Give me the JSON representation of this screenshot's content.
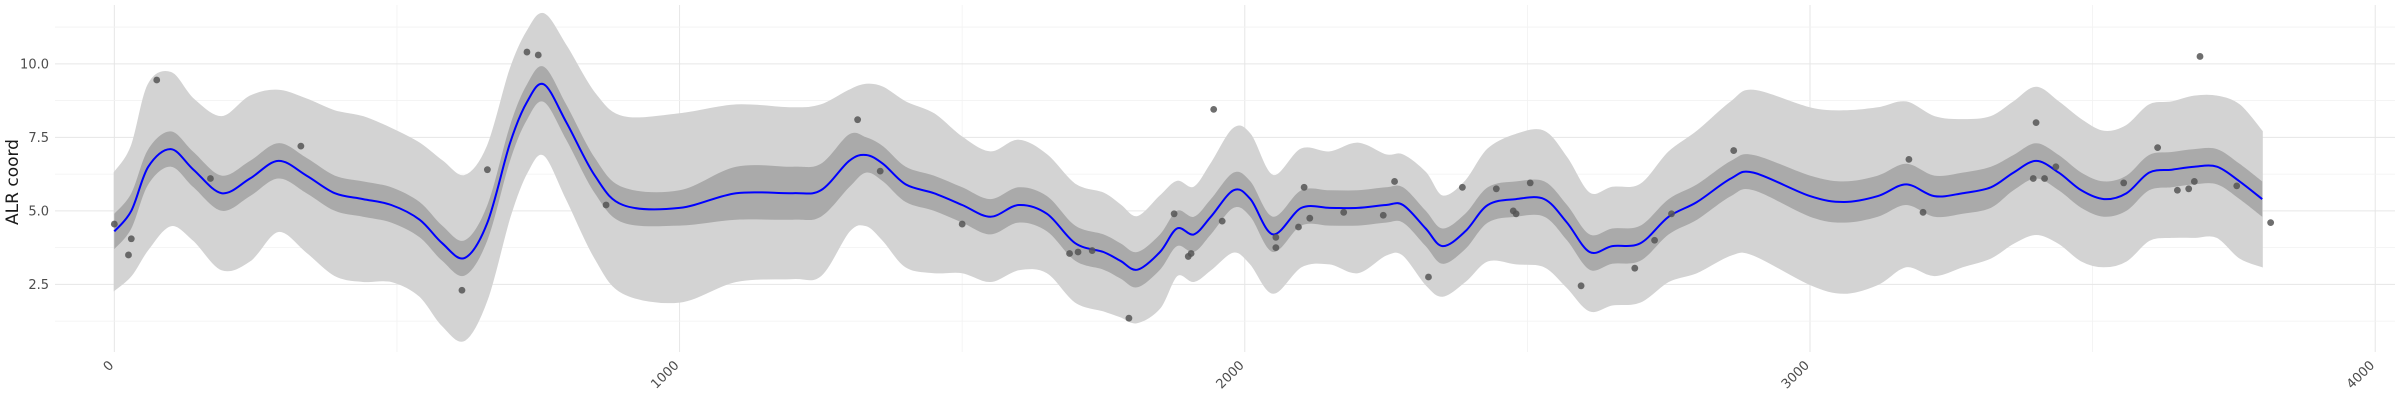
{
  "chart_data": {
    "type": "line",
    "title": "",
    "xlabel": "",
    "ylabel": "ALR coord",
    "xlim": [
      -105,
      4035
    ],
    "ylim": [
      0.2,
      12.0
    ],
    "x_ticks": [
      0,
      1000,
      2000,
      3000,
      4000
    ],
    "x_tick_labels": [
      "0",
      "1000",
      "2000",
      "3000",
      "4000"
    ],
    "y_ticks": [
      2.5,
      5.0,
      7.5,
      10.0
    ],
    "y_tick_labels": [
      "2.5",
      "5.0",
      "7.5",
      "10.0"
    ],
    "grid": true,
    "legend": "none",
    "colors": {
      "mean_line": "#0000ff",
      "inner_band": "#aaaaaa",
      "outer_band": "#d3d3d3",
      "points": "#555555"
    },
    "series": [
      {
        "type": "line",
        "x": [
          0,
          30,
          60,
          100,
          140,
          190,
          240,
          290,
          340,
          390,
          440,
          490,
          540,
          580,
          620,
          660,
          700,
          730,
          760,
          800,
          850,
          900,
          1000,
          1100,
          1200,
          1250,
          1300,
          1330,
          1360,
          1400,
          1450,
          1500,
          1550,
          1600,
          1650,
          1700,
          1750,
          1780,
          1810,
          1850,
          1880,
          1910,
          1940,
          1980,
          2010,
          2050,
          2100,
          2150,
          2200,
          2250,
          2280,
          2320,
          2350,
          2390,
          2430,
          2480,
          2530,
          2570,
          2610,
          2650,
          2700,
          2750,
          2800,
          2860,
          2900,
          3000,
          3060,
          3120,
          3170,
          3220,
          3270,
          3320,
          3360,
          3400,
          3440,
          3480,
          3520,
          3560,
          3600,
          3640,
          3680,
          3720,
          3760,
          3800
        ],
        "y": [
          4.3,
          5.0,
          6.5,
          7.1,
          6.4,
          5.6,
          6.1,
          6.7,
          6.2,
          5.6,
          5.4,
          5.2,
          4.7,
          3.9,
          3.4,
          4.6,
          7.3,
          8.7,
          9.3,
          8.0,
          6.2,
          5.2,
          5.1,
          5.6,
          5.6,
          5.7,
          6.7,
          6.9,
          6.6,
          5.9,
          5.6,
          5.2,
          4.8,
          5.2,
          4.9,
          3.9,
          3.6,
          3.3,
          3.0,
          3.6,
          4.4,
          4.2,
          4.8,
          5.7,
          5.4,
          4.2,
          5.1,
          5.1,
          5.1,
          5.2,
          5.2,
          4.4,
          3.8,
          4.3,
          5.2,
          5.4,
          5.4,
          4.6,
          3.6,
          3.8,
          3.9,
          4.8,
          5.3,
          6.1,
          6.3,
          5.5,
          5.3,
          5.5,
          5.9,
          5.5,
          5.6,
          5.8,
          6.3,
          6.7,
          6.3,
          5.7,
          5.4,
          5.6,
          6.3,
          6.4,
          6.5,
          6.5,
          6.0,
          5.4
        ]
      },
      {
        "type": "band",
        "name": "inner",
        "half_width": [
          0.6,
          0.6,
          0.6,
          0.6,
          0.6,
          0.6,
          0.6,
          0.6,
          0.6,
          0.6,
          0.6,
          0.6,
          0.6,
          0.6,
          0.6,
          0.6,
          0.6,
          0.6,
          0.6,
          0.6,
          0.6,
          0.6,
          0.6,
          0.9,
          0.9,
          0.9,
          0.9,
          0.6,
          0.6,
          0.6,
          0.6,
          0.6,
          0.6,
          0.6,
          0.6,
          0.6,
          0.6,
          0.6,
          0.6,
          0.6,
          0.6,
          0.6,
          0.6,
          0.6,
          0.6,
          0.6,
          0.6,
          0.6,
          0.6,
          0.6,
          0.6,
          0.6,
          0.6,
          0.6,
          0.6,
          0.6,
          0.6,
          0.6,
          0.6,
          0.6,
          0.6,
          0.6,
          0.6,
          0.6,
          0.6,
          0.7,
          0.7,
          0.7,
          0.7,
          0.7,
          0.7,
          0.7,
          0.6,
          0.6,
          0.6,
          0.6,
          0.6,
          0.6,
          0.6,
          0.6,
          0.6,
          0.6,
          0.6,
          0.6
        ]
      },
      {
        "type": "band",
        "name": "outer",
        "half_width": [
          2.0,
          2.2,
          2.8,
          2.6,
          2.4,
          2.6,
          2.8,
          2.4,
          2.6,
          2.8,
          2.8,
          2.6,
          2.6,
          2.8,
          2.8,
          2.6,
          2.5,
          2.4,
          2.4,
          2.6,
          2.8,
          3.0,
          3.2,
          3.0,
          2.9,
          2.9,
          2.4,
          2.4,
          2.6,
          2.8,
          2.7,
          2.3,
          2.2,
          2.2,
          2.0,
          2.0,
          2.0,
          1.9,
          1.8,
          1.9,
          1.6,
          1.6,
          1.8,
          2.1,
          2.2,
          2.0,
          2.0,
          1.9,
          2.2,
          1.7,
          1.7,
          1.9,
          1.7,
          1.7,
          1.9,
          2.2,
          2.3,
          2.2,
          2.0,
          2.0,
          2.0,
          2.2,
          2.4,
          2.6,
          2.8,
          3.0,
          3.1,
          3.0,
          2.8,
          2.7,
          2.5,
          2.4,
          2.4,
          2.5,
          2.4,
          2.4,
          2.3,
          2.3,
          2.3,
          2.3,
          2.4,
          2.4,
          2.6,
          2.3
        ]
      },
      {
        "type": "scatter",
        "points": [
          [
            0,
            4.55
          ],
          [
            30,
            4.05
          ],
          [
            25,
            3.5
          ],
          [
            75,
            9.45
          ],
          [
            170,
            6.1
          ],
          [
            330,
            7.2
          ],
          [
            615,
            2.3
          ],
          [
            660,
            6.4
          ],
          [
            730,
            10.4
          ],
          [
            750,
            10.3
          ],
          [
            870,
            5.2
          ],
          [
            1315,
            8.1
          ],
          [
            1355,
            6.35
          ],
          [
            1500,
            4.55
          ],
          [
            1690,
            3.55
          ],
          [
            1705,
            3.6
          ],
          [
            1730,
            3.65
          ],
          [
            1795,
            1.35
          ],
          [
            1875,
            4.9
          ],
          [
            1900,
            3.45
          ],
          [
            1905,
            3.55
          ],
          [
            1945,
            8.45
          ],
          [
            1960,
            4.65
          ],
          [
            2055,
            3.75
          ],
          [
            2055,
            4.1
          ],
          [
            2095,
            4.45
          ],
          [
            2105,
            5.8
          ],
          [
            2115,
            4.75
          ],
          [
            2175,
            4.95
          ],
          [
            2245,
            4.85
          ],
          [
            2265,
            6.0
          ],
          [
            2325,
            2.75
          ],
          [
            2385,
            5.8
          ],
          [
            2445,
            5.75
          ],
          [
            2475,
            5.0
          ],
          [
            2480,
            4.9
          ],
          [
            2505,
            5.95
          ],
          [
            2595,
            2.45
          ],
          [
            2690,
            3.05
          ],
          [
            2725,
            4.0
          ],
          [
            2755,
            4.9
          ],
          [
            2865,
            7.05
          ],
          [
            3175,
            6.75
          ],
          [
            3200,
            4.95
          ],
          [
            3400,
            8.0
          ],
          [
            3395,
            6.1
          ],
          [
            3415,
            6.1
          ],
          [
            3435,
            6.5
          ],
          [
            3555,
            5.95
          ],
          [
            3615,
            7.15
          ],
          [
            3650,
            5.7
          ],
          [
            3670,
            5.75
          ],
          [
            3690,
            10.25
          ],
          [
            3680,
            6.0
          ],
          [
            3755,
            5.85
          ],
          [
            3815,
            4.6
          ]
        ]
      }
    ]
  }
}
